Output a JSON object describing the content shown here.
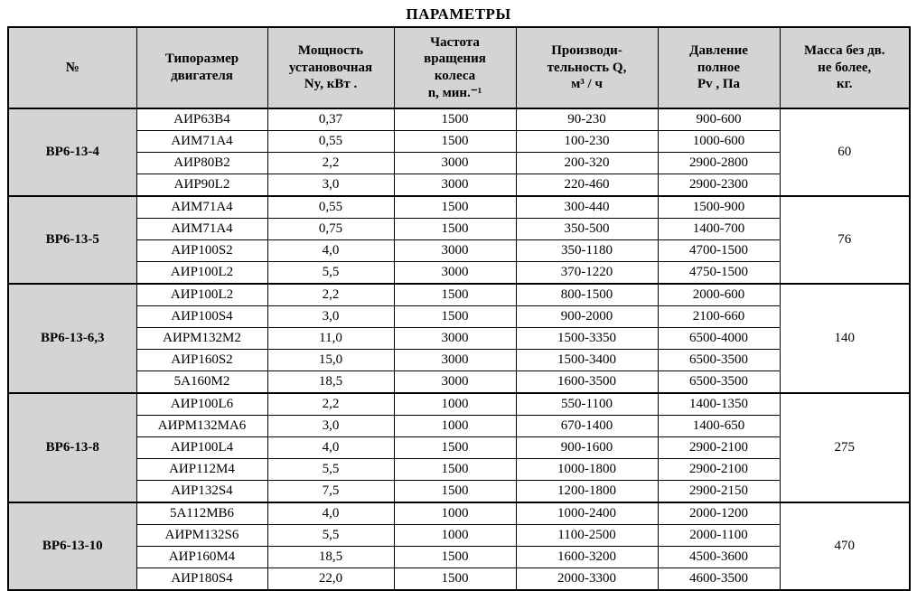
{
  "title": "ПАРАМЕТРЫ",
  "colors": {
    "header_bg": "#d4d4d4",
    "border": "#000000",
    "page_bg": "#ffffff"
  },
  "table": {
    "columns": [
      {
        "key": "num",
        "label": "№"
      },
      {
        "key": "motor",
        "label": "Типоразмер\nдвигателя"
      },
      {
        "key": "power",
        "label": "Мощность\nустановочная\nNy, кВт ."
      },
      {
        "key": "speed",
        "label": "Частота\nвращения\nколеса\nn, мин.⁻¹"
      },
      {
        "key": "capacity",
        "label": "Производи-\nтельность Q,\nм³ / ч"
      },
      {
        "key": "pressure",
        "label": "Давление\nполное\nPv , Па"
      },
      {
        "key": "mass",
        "label": "Масса без дв.\nне более,\nкг."
      }
    ],
    "groups": [
      {
        "name": "ВР6-13-4",
        "mass": "60",
        "rows": [
          [
            "АИР63В4",
            "0,37",
            "1500",
            "90-230",
            "900-600"
          ],
          [
            "АИМ71А4",
            "0,55",
            "1500",
            "100-230",
            "1000-600"
          ],
          [
            "АИР80В2",
            "2,2",
            "3000",
            "200-320",
            "2900-2800"
          ],
          [
            "АИР90L2",
            "3,0",
            "3000",
            "220-460",
            "2900-2300"
          ]
        ]
      },
      {
        "name": "ВР6-13-5",
        "mass": "76",
        "rows": [
          [
            "АИМ71А4",
            "0,55",
            "1500",
            "300-440",
            "1500-900"
          ],
          [
            "АИМ71А4",
            "0,75",
            "1500",
            "350-500",
            "1400-700"
          ],
          [
            "АИР100S2",
            "4,0",
            "3000",
            "350-1180",
            "4700-1500"
          ],
          [
            "АИР100L2",
            "5,5",
            "3000",
            "370-1220",
            "4750-1500"
          ]
        ]
      },
      {
        "name": "ВР6-13-6,3",
        "mass": "140",
        "rows": [
          [
            "АИР100L2",
            "2,2",
            "1500",
            "800-1500",
            "2000-600"
          ],
          [
            "АИР100S4",
            "3,0",
            "1500",
            "900-2000",
            "2100-660"
          ],
          [
            "АИРМ132М2",
            "11,0",
            "3000",
            "1500-3350",
            "6500-4000"
          ],
          [
            "АИР160S2",
            "15,0",
            "3000",
            "1500-3400",
            "6500-3500"
          ],
          [
            "5А160М2",
            "18,5",
            "3000",
            "1600-3500",
            "6500-3500"
          ]
        ]
      },
      {
        "name": "ВР6-13-8",
        "mass": "275",
        "rows": [
          [
            "АИР100L6",
            "2,2",
            "1000",
            "550-1100",
            "1400-1350"
          ],
          [
            "АИРМ132МА6",
            "3,0",
            "1000",
            "670-1400",
            "1400-650"
          ],
          [
            "АИР100L4",
            "4,0",
            "1500",
            "900-1600",
            "2900-2100"
          ],
          [
            "АИР112М4",
            "5,5",
            "1500",
            "1000-1800",
            "2900-2100"
          ],
          [
            "АИР132S4",
            "7,5",
            "1500",
            "1200-1800",
            "2900-2150"
          ]
        ]
      },
      {
        "name": "ВР6-13-10",
        "mass": "470",
        "rows": [
          [
            "5А112МВ6",
            "4,0",
            "1000",
            "1000-2400",
            "2000-1200"
          ],
          [
            "АИРМ132S6",
            "5,5",
            "1000",
            "1100-2500",
            "2000-1100"
          ],
          [
            "АИР160М4",
            "18,5",
            "1500",
            "1600-3200",
            "4500-3600"
          ],
          [
            "АИР180S4",
            "22,0",
            "1500",
            "2000-3300",
            "4600-3500"
          ]
        ]
      }
    ]
  }
}
